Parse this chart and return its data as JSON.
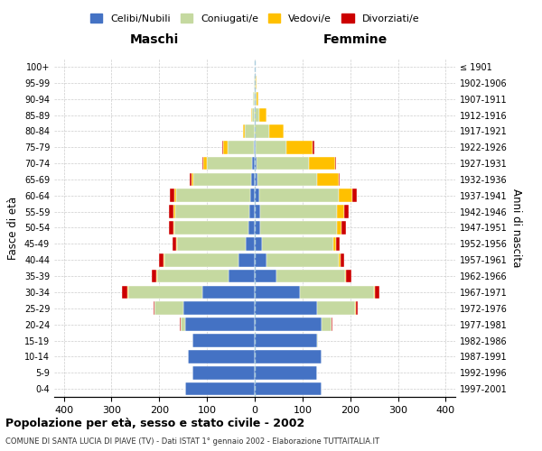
{
  "age_groups": [
    "0-4",
    "5-9",
    "10-14",
    "15-19",
    "20-24",
    "25-29",
    "30-34",
    "35-39",
    "40-44",
    "45-49",
    "50-54",
    "55-59",
    "60-64",
    "65-69",
    "70-74",
    "75-79",
    "80-84",
    "85-89",
    "90-94",
    "95-99",
    "100+"
  ],
  "birth_years": [
    "1997-2001",
    "1992-1996",
    "1987-1991",
    "1982-1986",
    "1977-1981",
    "1972-1976",
    "1967-1971",
    "1962-1966",
    "1957-1961",
    "1952-1956",
    "1947-1951",
    "1942-1946",
    "1937-1941",
    "1932-1936",
    "1927-1931",
    "1922-1926",
    "1917-1921",
    "1912-1916",
    "1907-1911",
    "1902-1906",
    "≤ 1901"
  ],
  "males": {
    "celibi": [
      145,
      130,
      140,
      130,
      145,
      150,
      110,
      55,
      35,
      18,
      13,
      12,
      10,
      8,
      5,
      2,
      0,
      0,
      0,
      0,
      0
    ],
    "coniugati": [
      0,
      0,
      0,
      0,
      10,
      60,
      155,
      150,
      155,
      145,
      155,
      155,
      155,
      120,
      95,
      55,
      20,
      5,
      3,
      1,
      0
    ],
    "vedovi": [
      0,
      0,
      0,
      0,
      0,
      0,
      2,
      1,
      1,
      2,
      2,
      3,
      4,
      5,
      8,
      10,
      5,
      2,
      1,
      0,
      0
    ],
    "divorziati": [
      0,
      0,
      0,
      0,
      2,
      2,
      12,
      10,
      10,
      8,
      10,
      10,
      8,
      3,
      2,
      2,
      0,
      0,
      0,
      0,
      0
    ]
  },
  "females": {
    "nubili": [
      140,
      130,
      140,
      130,
      140,
      130,
      95,
      45,
      25,
      15,
      12,
      12,
      10,
      5,
      3,
      2,
      0,
      0,
      0,
      0,
      0
    ],
    "coniugate": [
      0,
      0,
      0,
      2,
      20,
      80,
      155,
      145,
      150,
      150,
      160,
      160,
      165,
      125,
      110,
      65,
      30,
      10,
      3,
      1,
      0
    ],
    "vedove": [
      0,
      0,
      0,
      0,
      0,
      1,
      2,
      2,
      4,
      5,
      10,
      15,
      30,
      45,
      55,
      55,
      30,
      15,
      5,
      2,
      0
    ],
    "divorziate": [
      0,
      0,
      0,
      0,
      2,
      4,
      10,
      10,
      8,
      8,
      10,
      10,
      8,
      3,
      2,
      2,
      0,
      0,
      0,
      0,
      0
    ]
  },
  "colors": {
    "celibi": "#4472c4",
    "coniugati": "#c5d9a0",
    "vedovi": "#ffc000",
    "divorziati": "#cc0000"
  },
  "title": "Popolazione per età, sesso e stato civile - 2002",
  "subtitle": "COMUNE DI SANTA LUCIA DI PIAVE (TV) - Dati ISTAT 1° gennaio 2002 - Elaborazione TUTTAITALIA.IT",
  "xlabel_left": "Maschi",
  "xlabel_right": "Femmine",
  "ylabel_left": "Fasce di età",
  "ylabel_right": "Anni di nascita",
  "xlim": 420,
  "legend_labels": [
    "Celibi/Nubili",
    "Coniugati/e",
    "Vedovi/e",
    "Divorziati/e"
  ]
}
